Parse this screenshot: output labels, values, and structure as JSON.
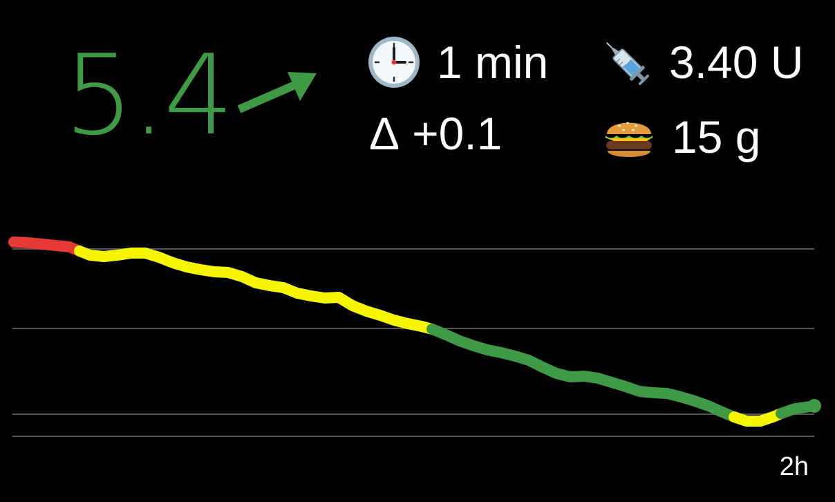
{
  "glucose": {
    "value": "5.4",
    "trend": "rising",
    "color": "#3e9a44"
  },
  "stats": {
    "age": {
      "icon": "clock-icon",
      "text": "1 min"
    },
    "insulin": {
      "icon": "syringe-icon",
      "text": "3.40 U"
    },
    "delta": {
      "symbol": "Δ",
      "text": "+0.1"
    },
    "carbs": {
      "icon": "burger-icon",
      "text": "15 g"
    }
  },
  "graph": {
    "time_range_label": "2h",
    "colors": {
      "high": "#e53935",
      "borderline": "#f6f600",
      "in_range": "#3e9a44",
      "gridline": "#555555"
    }
  }
}
